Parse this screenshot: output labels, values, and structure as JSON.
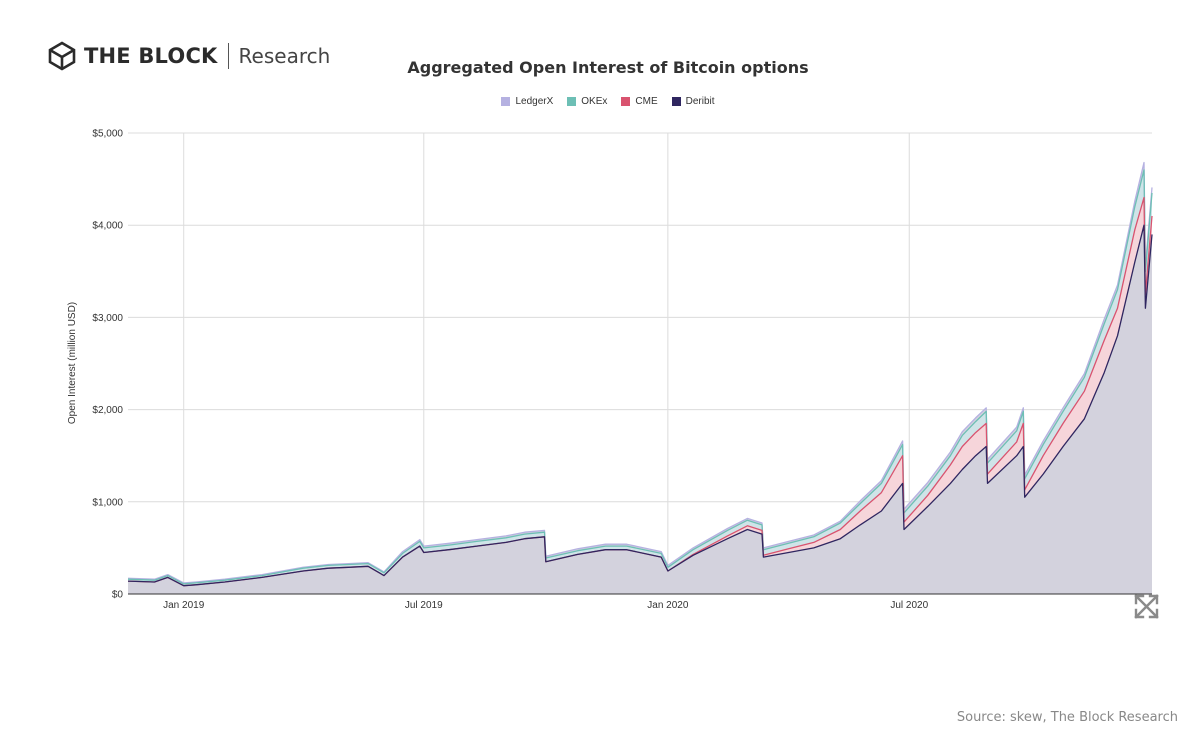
{
  "brand": {
    "name": "THE BLOCK",
    "subtitle": "Research",
    "logo_icon": "hexagon-cube-icon"
  },
  "source": "Source: skew, The Block Research",
  "colors": {
    "LedgerX": "#b5b1e1",
    "OKEx": "#6dbfb5",
    "CME": "#d9536f",
    "Deribit": "#2f2660",
    "area_fill": "#d3d2dd",
    "cme_band": "#f6d5da",
    "okex_band": "#cfe4e8"
  },
  "chart_data": {
    "type": "area",
    "title": "Aggregated Open Interest of Bitcoin options",
    "ylabel": "Open Interest (million USD)",
    "xlabel": "",
    "ylim": [
      0,
      5000
    ],
    "yticks": [
      0,
      1000,
      2000,
      3000,
      4000,
      5000
    ],
    "ytick_labels": [
      "$0",
      "$1,000",
      "$2,000",
      "$3,000",
      "$4,000",
      "$5,000"
    ],
    "xlim": [
      "2018-11-20",
      "2020-12-31"
    ],
    "xticks": [
      "2019-01-01",
      "2019-07-01",
      "2020-01-01",
      "2020-07-01"
    ],
    "xtick_labels": [
      "Jan 2019",
      "Jul 2019",
      "Jan 2020",
      "Jul 2020"
    ],
    "grid": true,
    "legend_position": "top-center",
    "stacking": "cumulative: Deribit, + CME, + OKEx, + LedgerX",
    "x": [
      "2018-11-20",
      "2018-12-10",
      "2018-12-20",
      "2019-01-01",
      "2019-01-10",
      "2019-02-01",
      "2019-03-01",
      "2019-04-01",
      "2019-04-20",
      "2019-05-05",
      "2019-05-20",
      "2019-06-01",
      "2019-06-15",
      "2019-06-28",
      "2019-07-01",
      "2019-07-20",
      "2019-08-10",
      "2019-09-01",
      "2019-09-15",
      "2019-09-30",
      "2019-10-01",
      "2019-10-25",
      "2019-11-15",
      "2019-12-01",
      "2019-12-27",
      "2020-01-01",
      "2020-01-20",
      "2020-02-15",
      "2020-03-01",
      "2020-03-12",
      "2020-03-13",
      "2020-04-01",
      "2020-04-20",
      "2020-05-10",
      "2020-05-25",
      "2020-06-10",
      "2020-06-26",
      "2020-06-27",
      "2020-07-15",
      "2020-08-01",
      "2020-08-10",
      "2020-08-20",
      "2020-08-28",
      "2020-08-29",
      "2020-09-20",
      "2020-09-25",
      "2020-09-26",
      "2020-10-10",
      "2020-10-25",
      "2020-11-10",
      "2020-11-25",
      "2020-12-05",
      "2020-12-18",
      "2020-12-25",
      "2020-12-26",
      "2020-12-31"
    ],
    "series": [
      {
        "name": "Deribit",
        "values": [
          140,
          130,
          180,
          90,
          100,
          130,
          180,
          250,
          280,
          290,
          300,
          200,
          400,
          520,
          450,
          480,
          520,
          560,
          600,
          620,
          350,
          430,
          480,
          480,
          400,
          250,
          420,
          600,
          700,
          650,
          400,
          450,
          500,
          600,
          750,
          900,
          1200,
          700,
          950,
          1200,
          1350,
          1500,
          1600,
          1200,
          1500,
          1600,
          1050,
          1300,
          1600,
          1900,
          2400,
          2800,
          3600,
          4000,
          3100,
          3900
        ]
      },
      {
        "name": "CME",
        "values": [
          0,
          0,
          0,
          0,
          0,
          0,
          0,
          0,
          0,
          0,
          0,
          0,
          0,
          0,
          0,
          0,
          0,
          0,
          0,
          0,
          0,
          0,
          0,
          0,
          0,
          0,
          10,
          30,
          40,
          40,
          20,
          40,
          60,
          100,
          150,
          200,
          300,
          80,
          120,
          200,
          250,
          250,
          250,
          100,
          150,
          250,
          80,
          200,
          250,
          300,
          350,
          300,
          350,
          300,
          150,
          200
        ]
      },
      {
        "name": "OKEx",
        "values": [
          20,
          20,
          20,
          20,
          20,
          20,
          20,
          30,
          30,
          30,
          30,
          30,
          40,
          50,
          50,
          50,
          50,
          50,
          50,
          50,
          40,
          40,
          40,
          40,
          40,
          40,
          50,
          60,
          60,
          60,
          60,
          60,
          60,
          70,
          80,
          100,
          120,
          100,
          100,
          100,
          120,
          120,
          130,
          120,
          120,
          130,
          120,
          120,
          130,
          150,
          180,
          200,
          250,
          300,
          250,
          250
        ]
      },
      {
        "name": "LedgerX",
        "values": [
          10,
          10,
          10,
          10,
          10,
          10,
          10,
          10,
          10,
          10,
          10,
          10,
          20,
          20,
          20,
          20,
          20,
          20,
          20,
          20,
          20,
          20,
          20,
          20,
          20,
          20,
          20,
          20,
          20,
          20,
          20,
          20,
          20,
          20,
          30,
          30,
          40,
          40,
          40,
          40,
          40,
          40,
          40,
          40,
          40,
          40,
          40,
          40,
          40,
          40,
          50,
          50,
          60,
          80,
          60,
          60
        ]
      }
    ]
  }
}
